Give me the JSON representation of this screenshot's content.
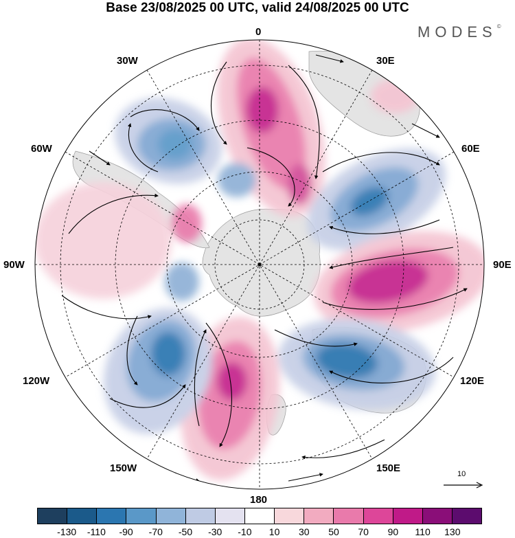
{
  "title": "Base 23/08/2025 00 UTC, valid 24/08/2025 00 UTC",
  "brand": "MODES",
  "brand_mark": "©",
  "labels": {
    "lon_0": "0",
    "lon_30e": "30E",
    "lon_60e": "60E",
    "lon_90e": "90E",
    "lon_120e": "120E",
    "lon_150e": "150E",
    "lon_180": "180",
    "lon_150w": "150W",
    "lon_120w": "120W",
    "lon_90w": "90W",
    "lon_60w": "60W",
    "lon_30w": "30W"
  },
  "vector_ref": "10",
  "colorbar": {
    "colors": [
      "#1e3f5e",
      "#1b5a8a",
      "#2b76b0",
      "#5a98c8",
      "#90b4d9",
      "#bfcbe4",
      "#e4e2f0",
      "#ffffff",
      "#f8d8dc",
      "#f2abc0",
      "#e97aab",
      "#dd4699",
      "#c01a88",
      "#8a0e78",
      "#5c0c6e"
    ],
    "ticks": [
      "-130",
      "-110",
      "-90",
      "-70",
      "-50",
      "-30",
      "-10",
      "10",
      "30",
      "50",
      "70",
      "90",
      "110",
      "130"
    ]
  },
  "colors": {
    "pos_strong": "#c4208c",
    "pos_mid": "#e97aab",
    "pos_light": "#f4c4d2",
    "neg_strong": "#2b76b0",
    "neg_mid": "#7fa6d2",
    "neg_light": "#c6cfe6",
    "land": "#e4e4e4"
  }
}
